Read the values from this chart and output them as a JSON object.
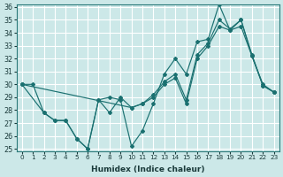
{
  "background_color": "#cce8e8",
  "grid_color": "#ffffff",
  "line_color": "#1a7070",
  "xlabel": "Humidex (Indice chaleur)",
  "ylim": [
    25,
    36
  ],
  "xlim": [
    -0.5,
    23.5
  ],
  "yticks": [
    25,
    26,
    27,
    28,
    29,
    30,
    31,
    32,
    33,
    34,
    35,
    36
  ],
  "xticks": [
    0,
    1,
    2,
    3,
    4,
    5,
    6,
    7,
    8,
    9,
    10,
    11,
    12,
    13,
    14,
    15,
    16,
    17,
    18,
    19,
    20,
    21,
    22,
    23
  ],
  "series": [
    {
      "x": [
        0,
        1,
        2,
        3,
        4,
        5,
        6,
        7,
        8,
        9,
        10,
        11,
        12,
        13,
        14,
        15,
        16,
        17,
        18,
        19,
        20,
        21,
        22,
        23
      ],
      "y": [
        30.0,
        30.0,
        27.8,
        27.2,
        27.2,
        25.8,
        25.0,
        28.8,
        29.0,
        28.8,
        25.2,
        26.4,
        28.5,
        30.8,
        32.0,
        30.8,
        33.3,
        33.5,
        36.2,
        34.2,
        35.0,
        32.2,
        30.0,
        29.4
      ]
    },
    {
      "x": [
        0,
        2,
        3,
        4,
        5,
        6,
        7,
        8,
        9,
        10,
        11,
        12,
        13,
        14,
        15,
        16,
        17,
        18,
        19,
        20,
        21,
        22,
        23
      ],
      "y": [
        30.0,
        27.8,
        27.2,
        27.2,
        25.8,
        25.0,
        28.8,
        27.8,
        29.0,
        28.2,
        28.5,
        29.0,
        30.0,
        30.5,
        28.5,
        32.0,
        33.0,
        34.5,
        34.2,
        34.5,
        32.2,
        29.9,
        29.4
      ]
    },
    {
      "x": [
        0,
        10,
        11,
        12,
        13,
        14,
        15,
        16,
        17,
        18,
        19,
        20,
        21,
        22,
        23
      ],
      "y": [
        30.0,
        28.2,
        28.5,
        29.2,
        30.2,
        30.8,
        28.8,
        32.3,
        33.2,
        35.0,
        34.3,
        35.0,
        32.3,
        29.9,
        29.4
      ]
    }
  ]
}
